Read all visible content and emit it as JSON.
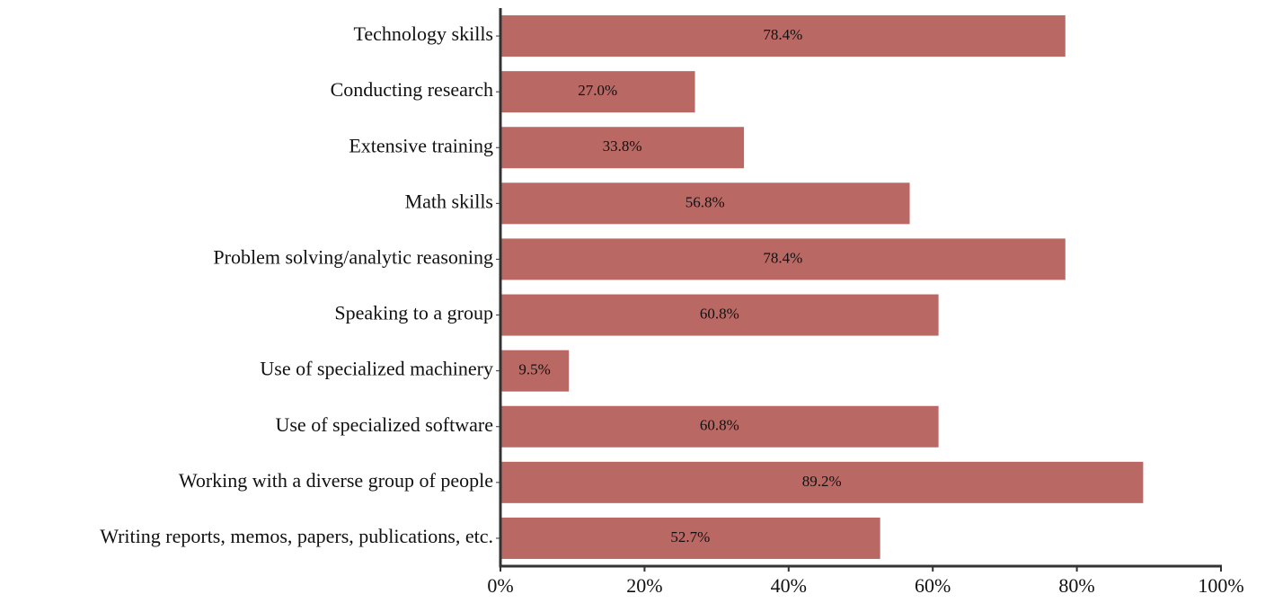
{
  "chart_data": {
    "type": "bar",
    "orientation": "horizontal",
    "categories": [
      "Technology skills",
      "Conducting research",
      "Extensive training",
      "Math skills",
      "Problem solving/analytic reasoning",
      "Speaking to a group",
      "Use of specialized machinery",
      "Use of specialized software",
      "Working with a diverse group of people",
      "Writing reports, memos, papers, publications, etc."
    ],
    "values": [
      78.4,
      27.0,
      33.8,
      56.8,
      78.4,
      60.8,
      9.5,
      60.8,
      89.2,
      52.7
    ],
    "value_labels": [
      "78.4%",
      "27.0%",
      "33.8%",
      "56.8%",
      "78.4%",
      "60.8%",
      "9.5%",
      "60.8%",
      "89.2%",
      "52.7%"
    ],
    "color": "#b96864",
    "xlim": [
      0,
      100
    ],
    "xticks": [
      {
        "value": 0,
        "label": "0%"
      },
      {
        "value": 20,
        "label": "20%"
      },
      {
        "value": 40,
        "label": "40%"
      },
      {
        "value": 60,
        "label": "60%"
      },
      {
        "value": 80,
        "label": "80%"
      },
      {
        "value": 100,
        "label": "100%"
      }
    ],
    "grid": false
  }
}
